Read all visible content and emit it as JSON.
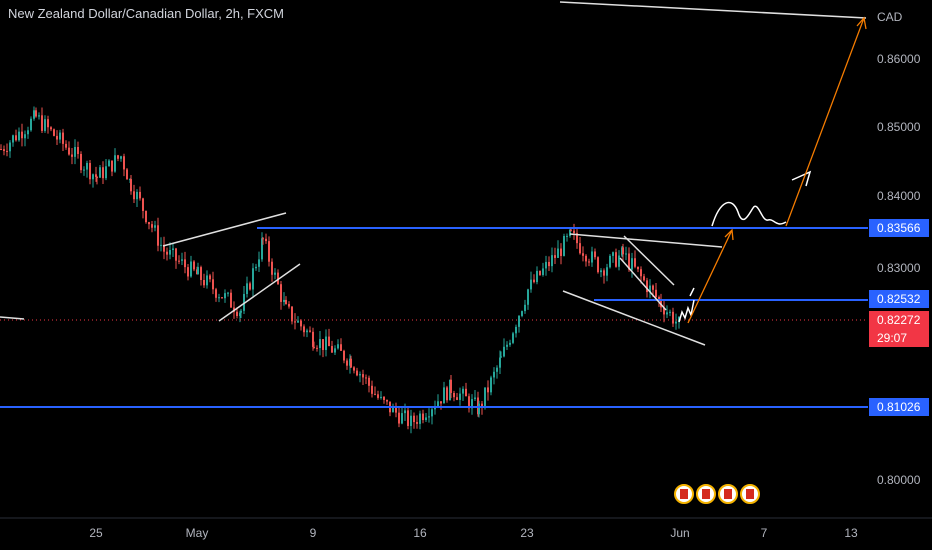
{
  "header": {
    "title": "New Zealand Dollar/Canadian Dollar, 2h, FXCM"
  },
  "price_axis": {
    "currency": "CAD",
    "ticks": [
      "0.86000",
      "0.85000",
      "0.84000",
      "0.83000",
      "0.80000"
    ]
  },
  "time_axis": {
    "ticks": [
      "25",
      "May",
      "9",
      "16",
      "23",
      "Jun",
      "7",
      "13"
    ]
  },
  "levels": {
    "resistance": "0.83566",
    "support_mid": "0.82532",
    "support_low": "0.81026",
    "current_price": "0.82272",
    "countdown": "29:07"
  },
  "colors": {
    "background": "#000000",
    "up_candle": "#26a69a",
    "down_candle": "#ef5350",
    "level_line": "#2962ff",
    "projection": "#f57c00",
    "current_price": "#f23645",
    "trendline": "#ffffff"
  },
  "icons": [
    "canada-flag-icon",
    "canada-flag-icon",
    "canada-flag-icon",
    "canada-flag-icon"
  ],
  "chart_data": {
    "type": "candlestick",
    "title": "New Zealand Dollar/Canadian Dollar, 2h, FXCM",
    "ylabel": "CAD",
    "ylim": [
      0.7955,
      0.8692
    ],
    "grid": false,
    "horizontal_levels": [
      0.83566,
      0.82532,
      0.81026
    ],
    "current_price": 0.82272,
    "price_path": [
      {
        "date": "Apr 20",
        "price": 0.848
      },
      {
        "date": "Apr 22",
        "price": 0.8525
      },
      {
        "date": "Apr 25",
        "price": 0.844
      },
      {
        "date": "Apr 27",
        "price": 0.847
      },
      {
        "date": "Apr 28",
        "price": 0.843
      },
      {
        "date": "Apr 30",
        "price": 0.8335
      },
      {
        "date": "May 2",
        "price": 0.83
      },
      {
        "date": "May 5",
        "price": 0.825
      },
      {
        "date": "May 6",
        "price": 0.835
      },
      {
        "date": "May 8",
        "price": 0.825
      },
      {
        "date": "May 10",
        "price": 0.821
      },
      {
        "date": "May 12",
        "price": 0.818
      },
      {
        "date": "May 14",
        "price": 0.812
      },
      {
        "date": "May 16",
        "price": 0.809
      },
      {
        "date": "May 18",
        "price": 0.814
      },
      {
        "date": "May 20",
        "price": 0.811
      },
      {
        "date": "May 22",
        "price": 0.818
      },
      {
        "date": "May 24",
        "price": 0.828
      },
      {
        "date": "May 26",
        "price": 0.8356
      },
      {
        "date": "May 28",
        "price": 0.831
      },
      {
        "date": "May 29",
        "price": 0.833
      },
      {
        "date": "May 30",
        "price": 0.826
      },
      {
        "date": "May 31",
        "price": 0.8227
      }
    ]
  }
}
